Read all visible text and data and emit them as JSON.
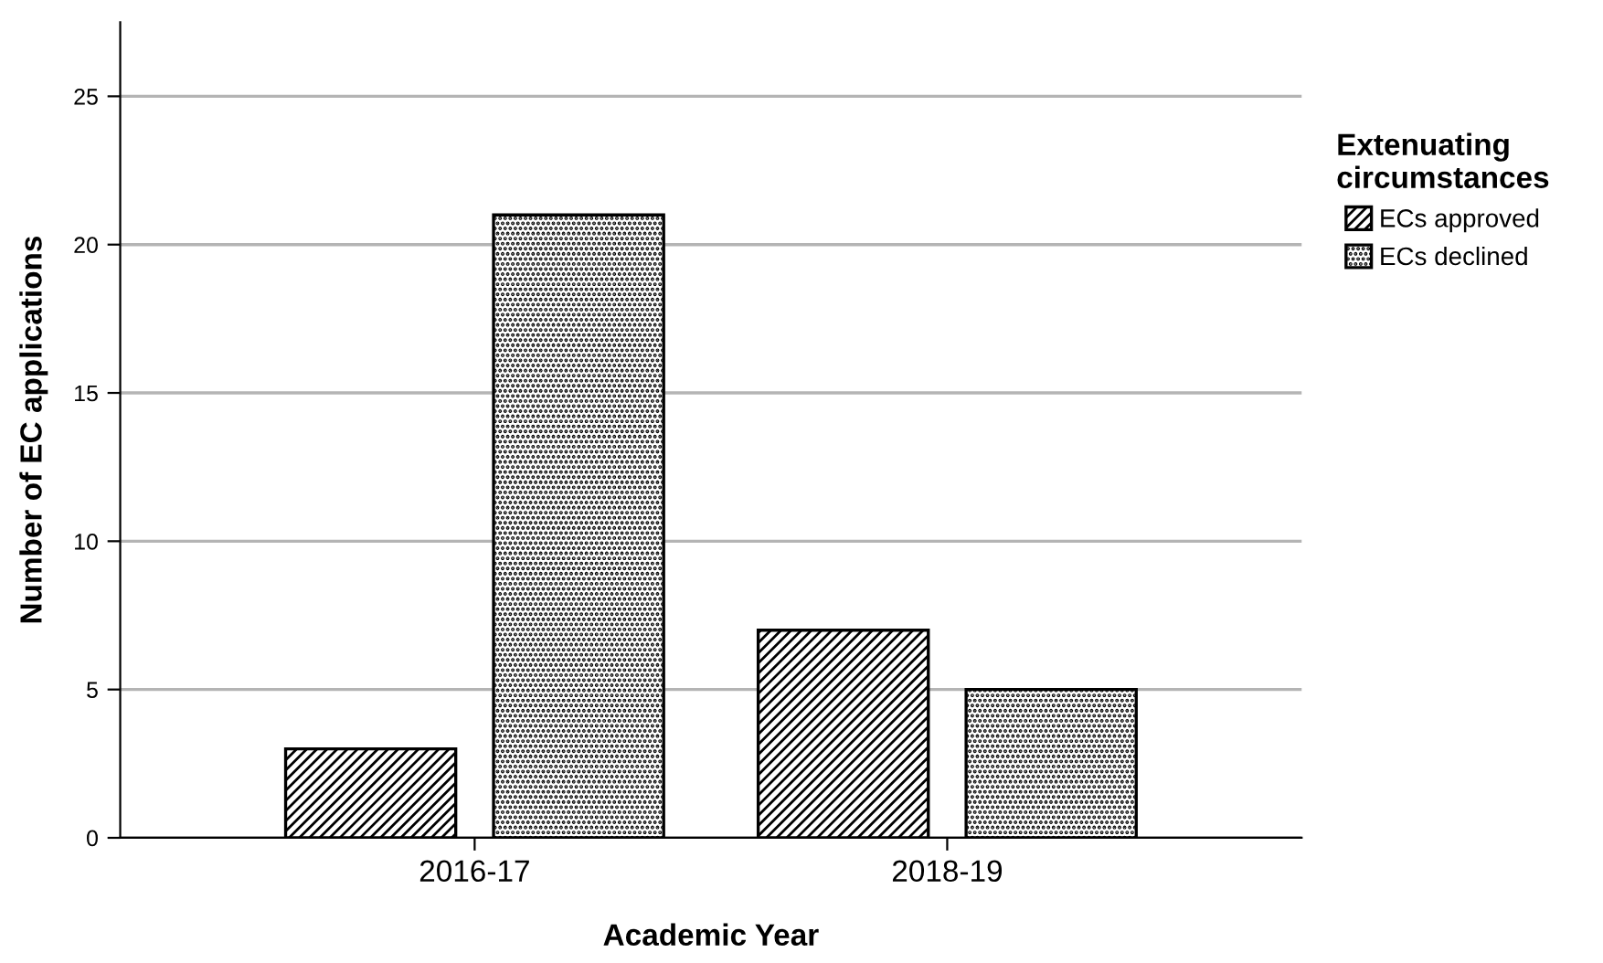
{
  "chart_data": {
    "type": "bar",
    "xlabel": "Academic Year",
    "ylabel": "Number of EC applications",
    "legend_title": "Extenuating\ncircumstances",
    "categories": [
      "2016-17",
      "2018-19"
    ],
    "series": [
      {
        "name": "ECs approved",
        "color": "#000000",
        "values": [
          3,
          7
        ]
      },
      {
        "name": "ECs declined",
        "color": "#000000",
        "values": [
          21,
          5
        ]
      }
    ],
    "ylim": [
      0,
      27.5
    ],
    "yticks": [
      0,
      5,
      10,
      15,
      20,
      25
    ],
    "grid": "y",
    "legend": "right"
  }
}
